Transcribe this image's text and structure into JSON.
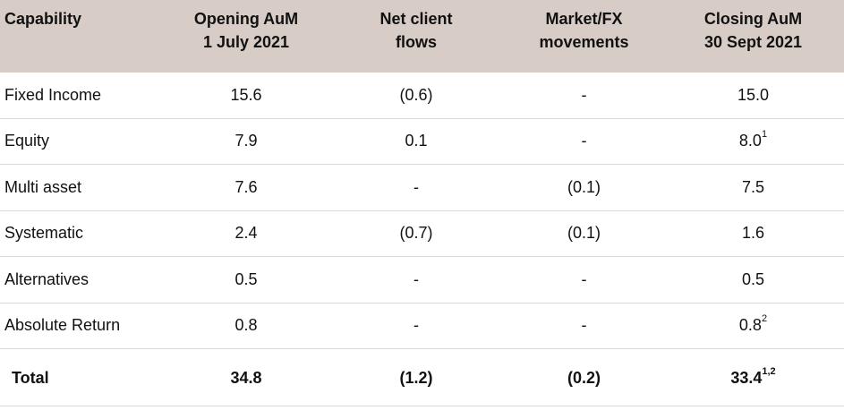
{
  "columns": [
    "Capability",
    "Opening AuM\n1 July 2021",
    "Net client\nflows",
    "Market/FX\nmovements",
    "Closing AuM\n30 Sept 2021"
  ],
  "rows": [
    {
      "capability": "Fixed Income",
      "opening": "15.6",
      "flows": "(0.6)",
      "market": "-",
      "closing": "15.0",
      "closing_note": ""
    },
    {
      "capability": "Equity",
      "opening": "7.9",
      "flows": "0.1",
      "market": "-",
      "closing": "8.0",
      "closing_note": "1"
    },
    {
      "capability": "Multi asset",
      "opening": "7.6",
      "flows": "-",
      "market": "(0.1)",
      "closing": "7.5",
      "closing_note": ""
    },
    {
      "capability": "Systematic",
      "opening": "2.4",
      "flows": "(0.7)",
      "market": "(0.1)",
      "closing": "1.6",
      "closing_note": ""
    },
    {
      "capability": "Alternatives",
      "opening": "0.5",
      "flows": "-",
      "market": "-",
      "closing": "0.5",
      "closing_note": ""
    },
    {
      "capability": "Absolute Return",
      "opening": "0.8",
      "flows": "-",
      "market": "-",
      "closing": "0.8",
      "closing_note": "2"
    }
  ],
  "total": {
    "capability": "Total",
    "opening": "34.8",
    "flows": "(1.2)",
    "market": "(0.2)",
    "closing": "33.4",
    "closing_note": "1,2"
  },
  "colors": {
    "header_bg": "#d8cdc6",
    "row_border": "#d9d9d9"
  }
}
